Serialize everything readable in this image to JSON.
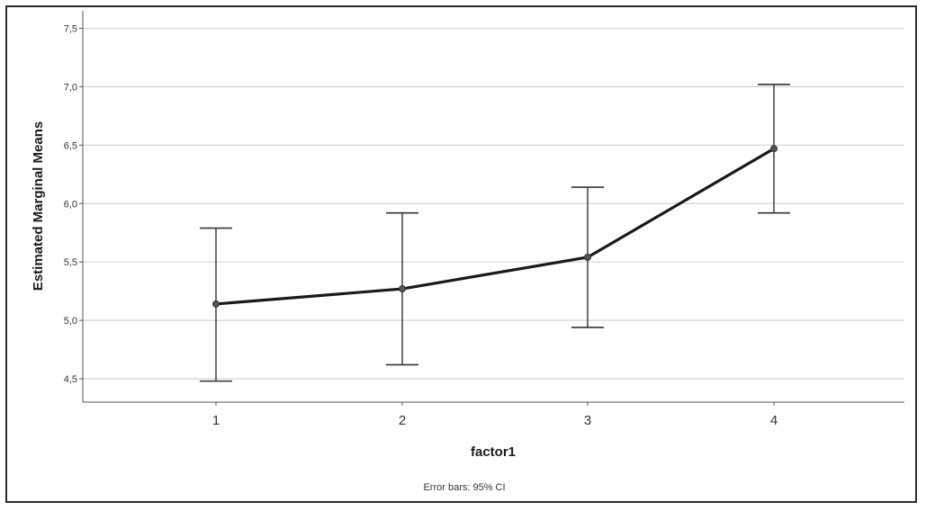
{
  "chart_data": {
    "type": "line",
    "title": "",
    "xlabel": "factor1",
    "ylabel": "Estimated Marginal Means",
    "categories": [
      "1",
      "2",
      "3",
      "4"
    ],
    "y_tick_labels": [
      "4,5",
      "5,0",
      "5,5",
      "6,0",
      "6,5",
      "7,0",
      "7,5"
    ],
    "y_ticks": [
      4.5,
      5.0,
      5.5,
      6.0,
      6.5,
      7.0,
      7.5
    ],
    "ylim": [
      4.3,
      7.65
    ],
    "grid": true,
    "series": [
      {
        "values": [
          5.14,
          5.27,
          5.54,
          6.47
        ],
        "ci_lower": [
          4.48,
          4.62,
          4.94,
          5.92
        ],
        "ci_upper": [
          5.79,
          5.92,
          6.14,
          7.02
        ]
      }
    ],
    "note": "Error bars: 95% CI",
    "colors": {
      "line": "#1a1a1a",
      "grid": "#d4d4d4",
      "errorbar": "#333333"
    }
  }
}
